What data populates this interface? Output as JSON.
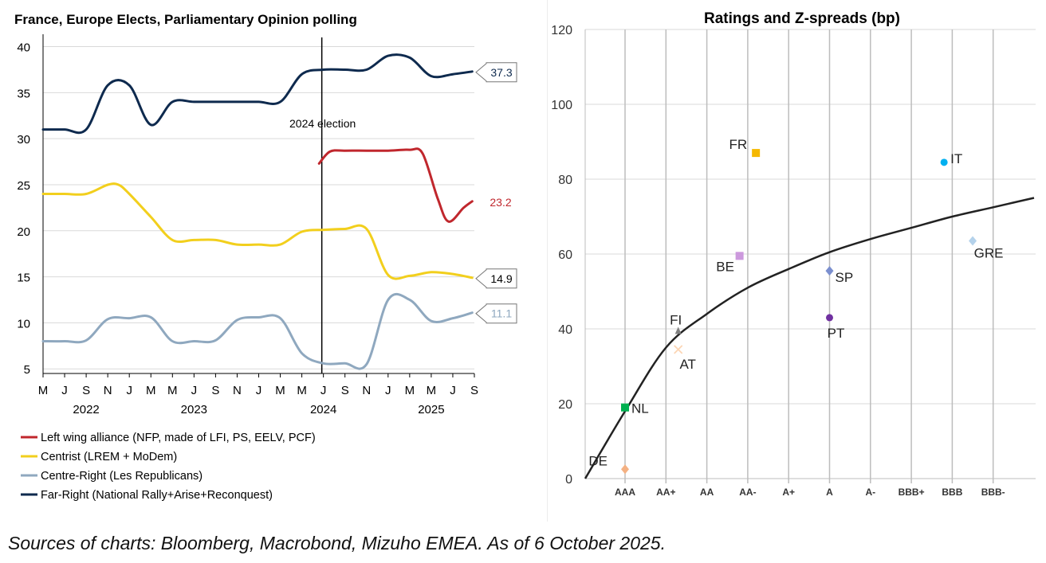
{
  "caption": "Sources of charts: Bloomberg, Macrobond, Mizuho EMEA. As of 6 October 2025.",
  "chart_data": [
    {
      "type": "line",
      "title": "France, Europe Elects, Parliamentary Opinion polling",
      "ylim": [
        4.5,
        41
      ],
      "yticks": [
        5,
        10,
        15,
        20,
        25,
        30,
        35,
        40
      ],
      "grid": true,
      "x_month_labels": [
        "M",
        "J",
        "S",
        "N",
        "J",
        "M",
        "M",
        "J",
        "S",
        "N",
        "J",
        "M",
        "M",
        "J",
        "S",
        "N",
        "J",
        "M",
        "M",
        "J",
        "S"
      ],
      "x_year_labels": [
        {
          "label": "2022",
          "index": 2
        },
        {
          "label": "2023",
          "index": 7
        },
        {
          "label": "2024",
          "index": 13
        },
        {
          "label": "2025",
          "index": 18
        }
      ],
      "annotation": {
        "text": "2024 election",
        "x_index": 13
      },
      "legend_placement": "bottom",
      "series": [
        {
          "name": "Left wing alliance (NFP, made of LFI, PS, EELV, PCF)",
          "color": "#c0272d",
          "points": [
            [
              12.8,
              27.3
            ],
            [
              13.3,
              28.6
            ],
            [
              14,
              28.7
            ],
            [
              15,
              28.7
            ],
            [
              16,
              28.7
            ],
            [
              17,
              28.8
            ],
            [
              17.6,
              28.4
            ],
            [
              18.3,
              23.5
            ],
            [
              18.8,
              21
            ],
            [
              19.5,
              22.5
            ],
            [
              19.9,
              23.2
            ]
          ],
          "last_value": "23.2",
          "label_style": "plain"
        },
        {
          "name": "Centrist (LREM + MoDem)",
          "color": "#f2cf1d",
          "points": [
            [
              0,
              24
            ],
            [
              1,
              24
            ],
            [
              2,
              24
            ],
            [
              3,
              25
            ],
            [
              3.5,
              25
            ],
            [
              4,
              24
            ],
            [
              5,
              21.5
            ],
            [
              6,
              19
            ],
            [
              7,
              19
            ],
            [
              8,
              19
            ],
            [
              9,
              18.5
            ],
            [
              10,
              18.5
            ],
            [
              11,
              18.5
            ],
            [
              12,
              19.9
            ],
            [
              13,
              20.1
            ],
            [
              14,
              20.2
            ],
            [
              15,
              20.2
            ],
            [
              16,
              15.2
            ],
            [
              17,
              15.1
            ],
            [
              18,
              15.5
            ],
            [
              19,
              15.3
            ],
            [
              19.9,
              14.9
            ]
          ],
          "last_value": "14.9",
          "label_style": "box"
        },
        {
          "name": "Centre-Right (Les Republicans)",
          "color": "#8fa8bf",
          "points": [
            [
              0,
              8
            ],
            [
              1,
              8
            ],
            [
              2,
              8.1
            ],
            [
              3,
              10.4
            ],
            [
              4,
              10.5
            ],
            [
              5,
              10.6
            ],
            [
              6,
              8
            ],
            [
              7,
              8
            ],
            [
              8,
              8.1
            ],
            [
              9,
              10.3
            ],
            [
              10,
              10.6
            ],
            [
              11,
              10.5
            ],
            [
              12,
              6.7
            ],
            [
              13,
              5.6
            ],
            [
              14,
              5.6
            ],
            [
              15,
              5.5
            ],
            [
              16,
              12.5
            ],
            [
              17,
              12.5
            ],
            [
              18,
              10.2
            ],
            [
              19,
              10.5
            ],
            [
              19.9,
              11.1
            ]
          ],
          "last_value": "11.1",
          "label_style": "box"
        },
        {
          "name": "Far-Right (National Rally+Arise+Reconquest)",
          "color": "#0e2a4e",
          "points": [
            [
              0,
              31
            ],
            [
              1,
              31
            ],
            [
              2,
              31
            ],
            [
              3,
              35.8
            ],
            [
              4,
              35.8
            ],
            [
              5,
              31.5
            ],
            [
              6,
              34
            ],
            [
              7,
              34
            ],
            [
              8,
              34
            ],
            [
              9,
              34
            ],
            [
              10,
              34
            ],
            [
              11,
              34
            ],
            [
              12,
              37
            ],
            [
              13,
              37.5
            ],
            [
              14,
              37.5
            ],
            [
              15,
              37.5
            ],
            [
              16,
              39
            ],
            [
              17,
              38.8
            ],
            [
              18,
              36.8
            ],
            [
              19,
              37
            ],
            [
              19.9,
              37.3
            ]
          ],
          "last_value": "37.3",
          "label_style": "box"
        }
      ]
    },
    {
      "type": "scatter",
      "title": "Ratings and Z-spreads (bp)",
      "ylim": [
        0,
        120
      ],
      "yticks": [
        0,
        20,
        40,
        60,
        80,
        100,
        120
      ],
      "grid": true,
      "categories": [
        "AAA",
        "AA+",
        "AA",
        "AA-",
        "A+",
        "A",
        "A-",
        "BBB+",
        "BBB",
        "BBB-"
      ],
      "curve": [
        [
          -1,
          0
        ],
        [
          0,
          18
        ],
        [
          1,
          35
        ],
        [
          2,
          44
        ],
        [
          3,
          51
        ],
        [
          4,
          56
        ],
        [
          5,
          60.5
        ],
        [
          6,
          64
        ],
        [
          7,
          67
        ],
        [
          8,
          70
        ],
        [
          9,
          72.5
        ],
        [
          10,
          75
        ]
      ],
      "points": [
        {
          "label": "DE",
          "x": 0,
          "y": 2.5,
          "color": "#f4b183",
          "marker": "diamond"
        },
        {
          "label": "NL",
          "x": 0,
          "y": 19,
          "color": "#00b050",
          "marker": "square"
        },
        {
          "label": "FI",
          "x": 1.3,
          "y": 39.5,
          "color": "#808080",
          "marker": "triangle"
        },
        {
          "label": "AT",
          "x": 1.3,
          "y": 34.5,
          "color": "#fcd5b4",
          "marker": "cross"
        },
        {
          "label": "BE",
          "x": 2.8,
          "y": 59.5,
          "color": "#cc99dd",
          "marker": "square"
        },
        {
          "label": "FR",
          "x": 3.2,
          "y": 87,
          "color": "#f5b800",
          "marker": "square"
        },
        {
          "label": "SP",
          "x": 5,
          "y": 55.5,
          "color": "#7b8fcf",
          "marker": "diamond"
        },
        {
          "label": "PT",
          "x": 5,
          "y": 43,
          "color": "#7030a0",
          "marker": "circle"
        },
        {
          "label": "IT",
          "x": 7.8,
          "y": 84.5,
          "color": "#00b0f0",
          "marker": "circle"
        },
        {
          "label": "GRE",
          "x": 8.5,
          "y": 63.5,
          "color": "#b4d2eb",
          "marker": "diamond"
        }
      ]
    }
  ]
}
